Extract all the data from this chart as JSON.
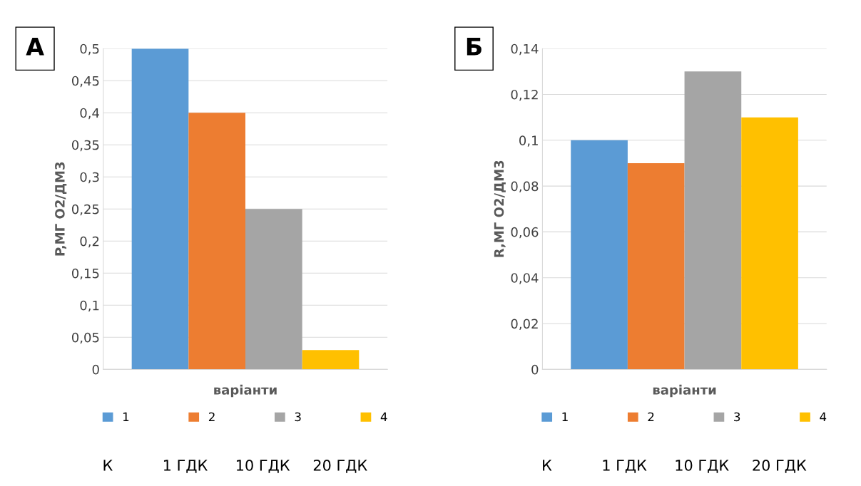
{
  "chart_data": [
    {
      "type": "bar",
      "categories": [
        null
      ],
      "xlabel": "варіанти",
      "ylabel": "P,МГ О2/ДМ3",
      "series": [
        {
          "name": "1",
          "color": "#5b9bd5",
          "values": [
            0.5
          ]
        },
        {
          "name": "2",
          "color": "#ed7d31",
          "values": [
            0.4
          ]
        },
        {
          "name": "3",
          "color": "#a5a5a5",
          "values": [
            0.25
          ]
        },
        {
          "name": "4",
          "color": "#ffc000",
          "values": [
            0.03
          ]
        }
      ],
      "ylim": [
        0,
        0.5
      ],
      "yticks": [
        0,
        {
          "value": 0.05,
          "label": "0,05"
        },
        {
          "value": 0.1,
          "label": "0,1"
        },
        {
          "value": 0.15,
          "label": "0,15"
        },
        {
          "value": 0.2,
          "label": "0,2"
        },
        {
          "value": 0.25,
          "label": "0,25"
        },
        {
          "value": 0.3,
          "label": "0,3"
        },
        {
          "value": 0.35,
          "label": "0,35"
        },
        {
          "value": 0.4,
          "label": "0,4"
        },
        {
          "value": 0.45,
          "label": "0,45"
        },
        {
          "value": 0.5,
          "label": "0,5"
        }
      ],
      "grid": "y",
      "legend": "bottom",
      "tick_labels": "y",
      "annotations": [
        "А",
        "К",
        "1 ГДК",
        "10 ГДК",
        "20 ГДК"
      ]
    },
    {
      "type": "bar",
      "categories": [
        null
      ],
      "xlabel": "варіанти",
      "ylabel": "R,МГ О2/ДМ3",
      "series": [
        {
          "name": "1",
          "color": "#5b9bd5",
          "values": [
            0.1
          ]
        },
        {
          "name": "2",
          "color": "#ed7d31",
          "values": [
            0.09
          ]
        },
        {
          "name": "3",
          "color": "#a5a5a5",
          "values": [
            0.13
          ]
        },
        {
          "name": "4",
          "color": "#ffc000",
          "values": [
            0.11
          ]
        }
      ],
      "ylim": [
        0,
        0.14
      ],
      "yticks": [
        0,
        {
          "value": 0.02,
          "label": "0,02"
        },
        {
          "value": 0.04,
          "label": "0,04"
        },
        {
          "value": 0.06,
          "label": "0,06"
        },
        {
          "value": 0.08,
          "label": "0,08"
        },
        {
          "value": 0.1,
          "label": "0,1"
        },
        {
          "value": 0.12,
          "label": "0,12"
        },
        {
          "value": 0.14,
          "label": "0,14"
        }
      ],
      "grid": "y",
      "legend": "bottom",
      "tick_labels": "y",
      "annotations": [
        "Б",
        "К",
        "1 ГДК",
        "10 ГДК",
        "20 ГДК"
      ]
    }
  ]
}
